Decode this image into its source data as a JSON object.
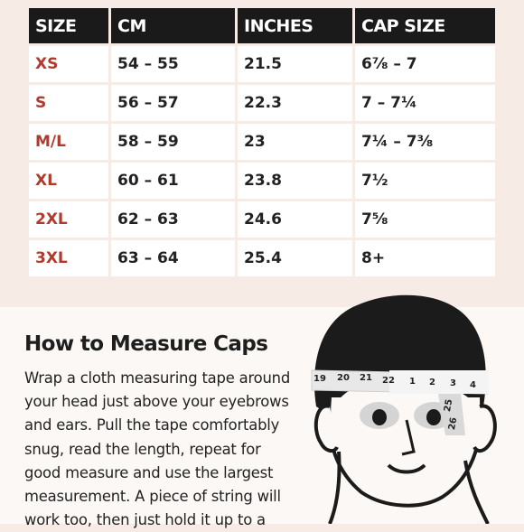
{
  "size_chart": {
    "headers": [
      "SIZE",
      "CM",
      "INCHES",
      "CAP SIZE"
    ],
    "rows": [
      [
        "XS",
        "54 – 55",
        "21.5",
        "6⅞ – 7"
      ],
      [
        "S",
        "56 – 57",
        "22.3",
        "7 – 7¼"
      ],
      [
        "M/L",
        "58 – 59",
        "23",
        "7¼ – 7⅜"
      ],
      [
        "XL",
        "60 – 61",
        "23.8",
        "7½"
      ],
      [
        "2XL",
        "62 – 63",
        "24.6",
        "7⅝"
      ],
      [
        "3XL",
        "63 – 64",
        "25.4",
        "8+"
      ]
    ]
  },
  "measure": {
    "heading": "How to Measure Caps",
    "body": "Wrap a cloth measuring tape around your head just above your eyebrows and ears. Pull the tape comfortably snug, read the length, repeat for good measure and use the largest measurement. A piece of string will work too, then just hold it up to a"
  },
  "tape": {
    "numbers_left": [
      "19",
      "20",
      "21",
      "22"
    ],
    "numbers_right": [
      "1",
      "2",
      "3",
      "4"
    ],
    "numbers_hanging": [
      "25",
      "26"
    ]
  },
  "colors": {
    "size_text": "#b03a2e",
    "header_bg": "#1a1a1a",
    "page_bg": "#f7ebe5"
  }
}
